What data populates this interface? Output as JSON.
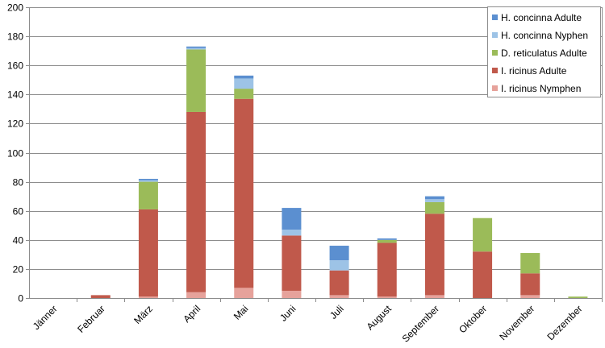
{
  "chart_data": {
    "type": "bar",
    "stacked": true,
    "categories": [
      "Jänner",
      "Februar",
      "März",
      "April",
      "Mai",
      "Juni",
      "Juli",
      "August",
      "September",
      "Oktober",
      "November",
      "Dezember"
    ],
    "series": [
      {
        "name": "I. ricinus Nymphen",
        "color": "#E6A29B",
        "values": [
          0,
          0,
          1,
          4,
          7,
          5,
          2,
          1,
          2,
          0,
          2,
          0
        ]
      },
      {
        "name": "I. ricinus Adulte",
        "color": "#C0594B",
        "values": [
          0,
          2,
          60,
          124,
          130,
          38,
          17,
          37,
          56,
          32,
          15,
          0
        ]
      },
      {
        "name": "D. reticulatus Adulte",
        "color": "#9BBB59",
        "values": [
          0,
          0,
          19,
          43,
          7,
          0,
          0,
          2,
          8,
          23,
          14,
          1
        ]
      },
      {
        "name": "H. concinna Nyphen",
        "color": "#9DC3E6",
        "values": [
          0,
          0,
          1,
          1,
          7,
          4,
          7,
          0,
          2,
          0,
          0,
          0
        ]
      },
      {
        "name": "H. concinna Adulte",
        "color": "#5B8FD0",
        "values": [
          0,
          0,
          1,
          1,
          2,
          15,
          10,
          1,
          2,
          0,
          0,
          0
        ]
      }
    ],
    "legend_order": [
      "H. concinna Adulte",
      "H. concinna Nyphen",
      "D. reticulatus Adulte",
      "I. ricinus Adulte",
      "I. ricinus Nymphen"
    ],
    "ylim": [
      0,
      200
    ],
    "yticks": [
      0,
      20,
      40,
      60,
      80,
      100,
      120,
      140,
      160,
      180,
      200
    ],
    "grid": true,
    "legend_position": "top-right",
    "title": "",
    "xlabel": "",
    "ylabel": ""
  }
}
